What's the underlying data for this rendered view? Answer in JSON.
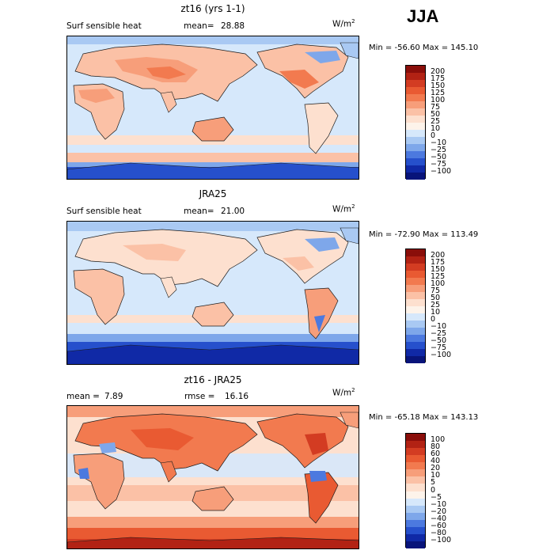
{
  "season": "JJA",
  "colors": {
    "ocean_neutral": "#d6e8fb",
    "land_outline": "#1b1b1b"
  },
  "panels": [
    {
      "title": "zt16 (yrs 1-1)",
      "left_label": "Surf sensible heat",
      "stat_label": "mean=",
      "stat_value": "28.88",
      "units": "W/m",
      "units_sup": "2",
      "minmax": "Min = -56.60  Max = 145.10",
      "colorbar_labels": [
        "200",
        "175",
        "150",
        "125",
        "100",
        "75",
        "50",
        "25",
        "10",
        "0",
        "−10",
        "−25",
        "−50",
        "−75",
        "−100"
      ],
      "colorbar_colors": [
        "#8a0e0a",
        "#b22214",
        "#d33c22",
        "#e95a32",
        "#f27a4f",
        "#f79e7a",
        "#fbc1a6",
        "#fde0cf",
        "#fdf3ea",
        "#d6e8fb",
        "#a9c9f3",
        "#7ea7ea",
        "#4c79df",
        "#2650cc",
        "#1029a6",
        "#08147a"
      ]
    },
    {
      "title": "JRA25",
      "left_label": "Surf sensible heat",
      "stat_label": "mean=",
      "stat_value": "21.00",
      "units": "W/m",
      "units_sup": "2",
      "minmax": "Min = -72.90  Max = 113.49",
      "colorbar_labels": [
        "200",
        "175",
        "150",
        "125",
        "100",
        "75",
        "50",
        "25",
        "10",
        "0",
        "−10",
        "−25",
        "−50",
        "−75",
        "−100"
      ],
      "colorbar_colors": [
        "#8a0e0a",
        "#b22214",
        "#d33c22",
        "#e95a32",
        "#f27a4f",
        "#f79e7a",
        "#fbc1a6",
        "#fde0cf",
        "#fdf3ea",
        "#d6e8fb",
        "#a9c9f3",
        "#7ea7ea",
        "#4c79df",
        "#2650cc",
        "#1029a6",
        "#08147a"
      ]
    },
    {
      "title": "zt16 - JRA25",
      "left_label": "mean =",
      "stat_label": "rmse =",
      "left_value": "7.89",
      "stat_value": "16.16",
      "units": "W/m",
      "units_sup": "2",
      "minmax": "Min = -65.18  Max = 143.13",
      "colorbar_labels": [
        "100",
        "80",
        "60",
        "40",
        "20",
        "10",
        "5",
        "0",
        "−5",
        "−10",
        "−20",
        "−40",
        "−60",
        "−80",
        "−100"
      ],
      "colorbar_colors": [
        "#8a0e0a",
        "#b22214",
        "#d33c22",
        "#e95a32",
        "#f27a4f",
        "#f79e7a",
        "#fbc1a6",
        "#fde0cf",
        "#fdf3ea",
        "#d6e8fb",
        "#a9c9f3",
        "#7ea7ea",
        "#4c79df",
        "#2650cc",
        "#1029a6",
        "#08147a"
      ]
    }
  ]
}
